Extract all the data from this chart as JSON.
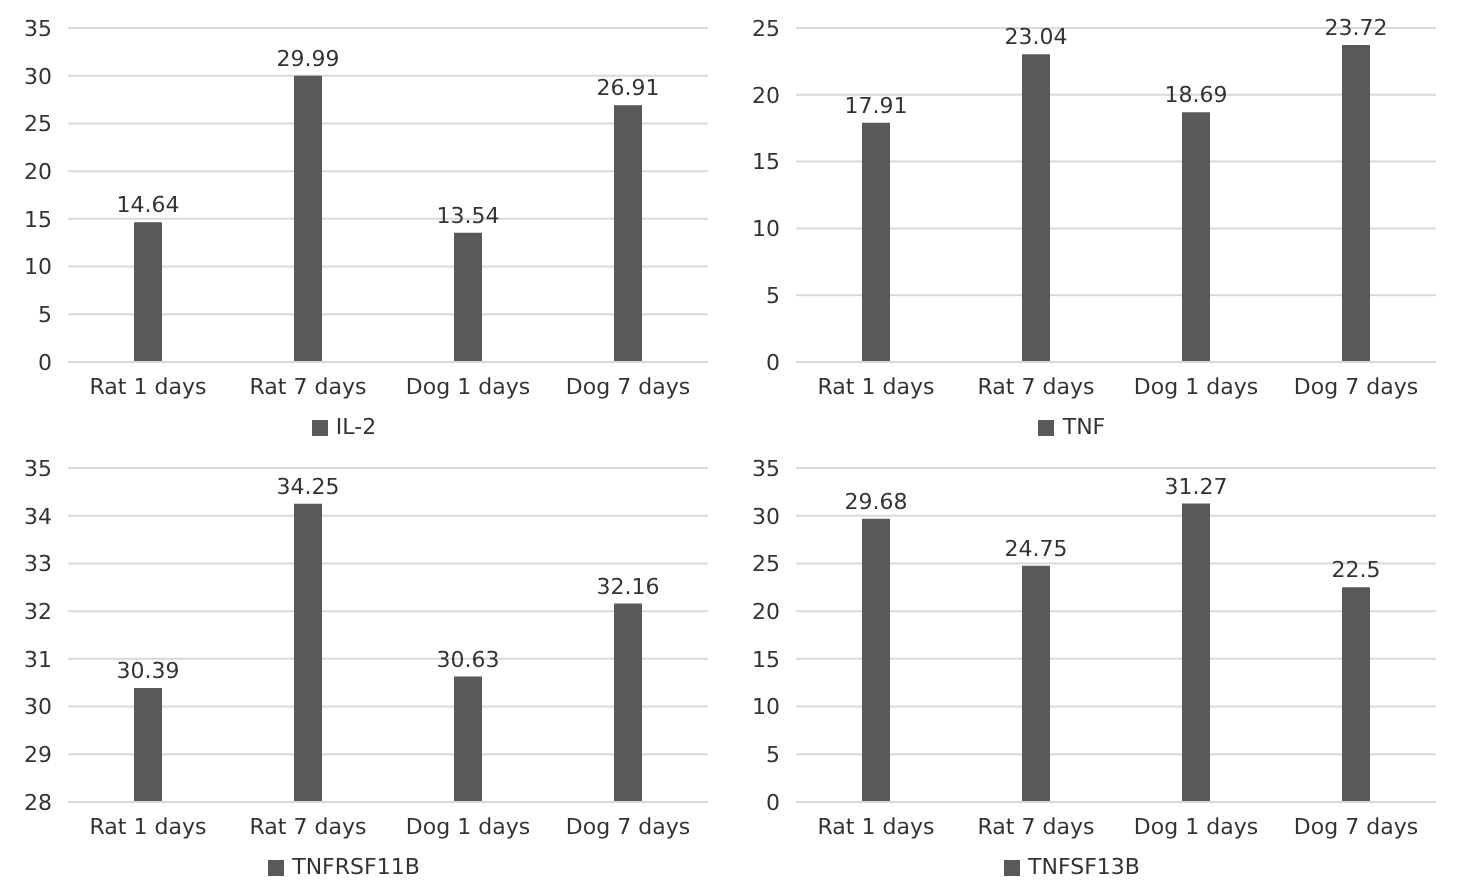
{
  "chart_data": [
    {
      "type": "bar",
      "categories": [
        "Rat 1 days",
        "Rat 7 days",
        "Dog 1 days",
        "Dog 7 days"
      ],
      "series": [
        {
          "name": "IL-2",
          "color": "#595959",
          "values": [
            14.64,
            29.99,
            13.54,
            26.91
          ]
        }
      ],
      "ylim": [
        0,
        35
      ],
      "yticks": [
        0,
        5,
        10,
        15,
        20,
        25,
        30,
        35
      ],
      "grid": "y",
      "legend": "bottom",
      "data_labels": true
    },
    {
      "type": "bar",
      "categories": [
        "Rat 1 days",
        "Rat 7 days",
        "Dog 1 days",
        "Dog 7 days"
      ],
      "series": [
        {
          "name": "TNF",
          "color": "#595959",
          "values": [
            17.91,
            23.04,
            18.69,
            23.72
          ]
        }
      ],
      "ylim": [
        0,
        25
      ],
      "yticks": [
        0,
        5,
        10,
        15,
        20,
        25
      ],
      "grid": "y",
      "legend": "bottom",
      "data_labels": true
    },
    {
      "type": "bar",
      "categories": [
        "Rat 1 days",
        "Rat 7 days",
        "Dog 1 days",
        "Dog 7 days"
      ],
      "series": [
        {
          "name": "TNFRSF11B",
          "color": "#595959",
          "values": [
            30.39,
            34.25,
            30.63,
            32.16
          ]
        }
      ],
      "ylim": [
        28,
        35
      ],
      "yticks": [
        28,
        29,
        30,
        31,
        32,
        33,
        34,
        35
      ],
      "grid": "y",
      "legend": "bottom",
      "data_labels": true
    },
    {
      "type": "bar",
      "categories": [
        "Rat 1 days",
        "Rat 7 days",
        "Dog 1 days",
        "Dog 7 days"
      ],
      "series": [
        {
          "name": "TNFSF13B",
          "color": "#595959",
          "values": [
            29.68,
            24.75,
            31.27,
            22.5
          ]
        }
      ],
      "ylim": [
        0,
        35
      ],
      "yticks": [
        0,
        5,
        10,
        15,
        20,
        25,
        30,
        35
      ],
      "grid": "y",
      "legend": "bottom",
      "data_labels": true
    }
  ]
}
